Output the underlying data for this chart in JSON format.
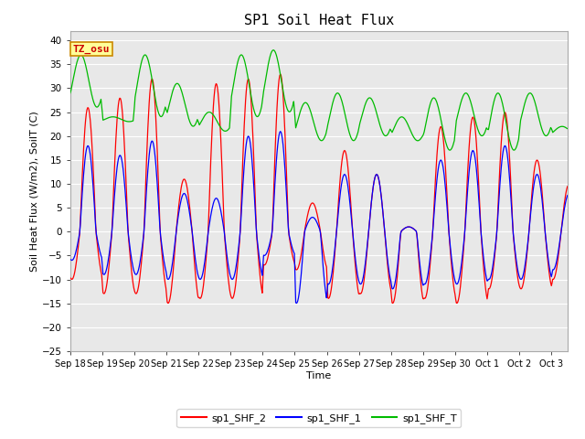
{
  "title": "SP1 Soil Heat Flux",
  "xlabel": "Time",
  "ylabel": "Soil Heat Flux (W/m2), SoilT (C)",
  "ylim": [
    -25,
    42
  ],
  "yticks": [
    -25,
    -20,
    -15,
    -10,
    -5,
    0,
    5,
    10,
    15,
    20,
    25,
    30,
    35,
    40
  ],
  "xlabels": [
    "Sep 18",
    "Sep 19",
    "Sep 20",
    "Sep 21",
    "Sep 22",
    "Sep 23",
    "Sep 24",
    "Sep 25",
    "Sep 26",
    "Sep 27",
    "Sep 28",
    "Sep 29",
    "Sep 30",
    "Oct 1",
    "Oct 2",
    "Oct 3"
  ],
  "colors": {
    "SHF_2": "#ff0000",
    "SHF_1": "#0000ff",
    "SHF_T": "#00bb00"
  },
  "legend_labels": [
    "sp1_SHF_2",
    "sp1_SHF_1",
    "sp1_SHF_T"
  ],
  "annotation_text": "TZ_osu",
  "annotation_color": "#cc0000",
  "annotation_bg": "#ffff99",
  "annotation_border": "#cc8800",
  "background_color": "#ffffff",
  "plot_bg": "#e8e8e8",
  "grid_color": "#ffffff",
  "title_fontsize": 11,
  "axis_fontsize": 8,
  "tick_fontsize": 7.5
}
